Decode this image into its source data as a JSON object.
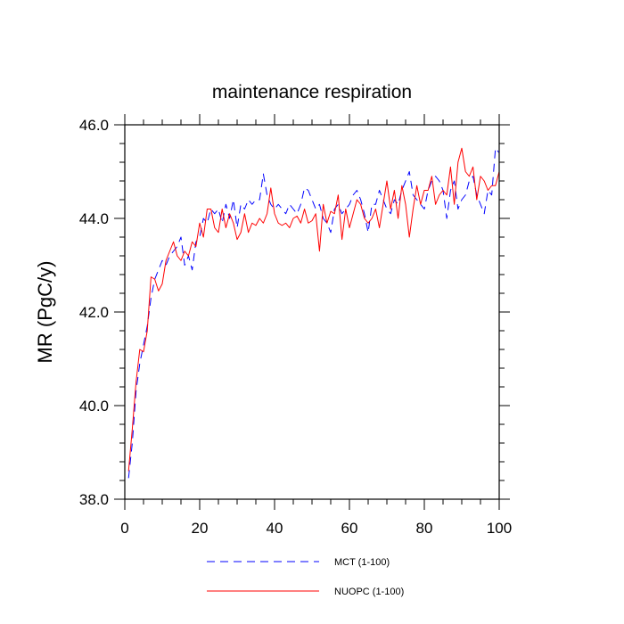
{
  "chart_data": {
    "type": "line",
    "title": "maintenance respiration",
    "xlabel": "",
    "ylabel": "MR  (PgC/y)",
    "xlim": [
      0,
      100
    ],
    "ylim": [
      38.0,
      46.0
    ],
    "x_ticks": [
      0,
      20,
      40,
      60,
      80,
      100
    ],
    "x_tick_labels": [
      "0",
      "20",
      "40",
      "60",
      "80",
      "100"
    ],
    "y_ticks": [
      38.0,
      40.0,
      42.0,
      44.0,
      46.0
    ],
    "y_tick_labels": [
      "38.0",
      "40.0",
      "42.0",
      "44.0",
      "46.0"
    ],
    "grid": false,
    "legend_position": "bottom",
    "series": [
      {
        "name": "MCT (1-100)",
        "color": "#0000ff",
        "style": "dashed",
        "x": [
          1,
          2,
          3,
          4,
          5,
          6,
          7,
          8,
          9,
          10,
          11,
          12,
          13,
          14,
          15,
          16,
          17,
          18,
          19,
          20,
          21,
          22,
          23,
          24,
          25,
          26,
          27,
          28,
          29,
          30,
          31,
          32,
          33,
          34,
          35,
          36,
          37,
          38,
          39,
          40,
          41,
          42,
          43,
          44,
          45,
          46,
          47,
          48,
          49,
          50,
          51,
          52,
          53,
          54,
          55,
          56,
          57,
          58,
          59,
          60,
          61,
          62,
          63,
          64,
          65,
          66,
          67,
          68,
          69,
          70,
          71,
          72,
          73,
          74,
          75,
          76,
          77,
          78,
          79,
          80,
          81,
          82,
          83,
          84,
          85,
          86,
          87,
          88,
          89,
          90,
          91,
          92,
          93,
          94,
          95,
          96,
          97,
          98,
          99,
          100
        ],
        "values": [
          38.45,
          39.2,
          40.3,
          40.9,
          41.3,
          41.7,
          42.3,
          42.7,
          42.9,
          43.1,
          43.0,
          43.2,
          43.3,
          43.4,
          43.6,
          43.0,
          43.2,
          42.9,
          43.5,
          43.6,
          44.0,
          43.9,
          44.2,
          44.1,
          44.2,
          43.9,
          44.3,
          44.0,
          44.4,
          43.8,
          44.3,
          44.2,
          44.4,
          44.3,
          44.4,
          44.4,
          44.95,
          44.5,
          44.3,
          44.2,
          44.3,
          44.2,
          44.1,
          44.3,
          44.2,
          44.1,
          44.3,
          44.65,
          44.6,
          44.4,
          44.2,
          44.3,
          44.0,
          43.9,
          43.7,
          44.2,
          44.3,
          44.1,
          44.2,
          44.3,
          44.5,
          44.6,
          44.4,
          44.1,
          43.7,
          44.3,
          44.3,
          44.6,
          44.4,
          44.2,
          44.1,
          44.4,
          44.3,
          44.6,
          44.8,
          45.0,
          44.5,
          44.4,
          44.3,
          44.2,
          44.6,
          44.8,
          44.9,
          44.8,
          44.6,
          44.0,
          44.6,
          44.8,
          44.2,
          44.4,
          44.5,
          44.8,
          44.9,
          44.5,
          44.3,
          44.1,
          44.6,
          44.5,
          45.5,
          45.4
        ]
      },
      {
        "name": "NUOPC (1-100)",
        "color": "#ff0000",
        "style": "solid",
        "x": [
          1,
          2,
          3,
          4,
          5,
          6,
          7,
          8,
          9,
          10,
          11,
          12,
          13,
          14,
          15,
          16,
          17,
          18,
          19,
          20,
          21,
          22,
          23,
          24,
          25,
          26,
          27,
          28,
          29,
          30,
          31,
          32,
          33,
          34,
          35,
          36,
          37,
          38,
          39,
          40,
          41,
          42,
          43,
          44,
          45,
          46,
          47,
          48,
          49,
          50,
          51,
          52,
          53,
          54,
          55,
          56,
          57,
          58,
          59,
          60,
          61,
          62,
          63,
          64,
          65,
          66,
          67,
          68,
          69,
          70,
          71,
          72,
          73,
          74,
          75,
          76,
          77,
          78,
          79,
          80,
          81,
          82,
          83,
          84,
          85,
          86,
          87,
          88,
          89,
          90,
          91,
          92,
          93,
          94,
          95,
          96,
          97,
          98,
          99,
          100
        ],
        "values": [
          38.6,
          39.5,
          40.5,
          41.2,
          41.15,
          41.6,
          42.75,
          42.7,
          42.45,
          42.6,
          43.1,
          43.3,
          43.5,
          43.2,
          43.1,
          43.3,
          43.2,
          43.5,
          43.4,
          43.9,
          43.6,
          44.2,
          44.2,
          43.8,
          43.7,
          44.2,
          43.8,
          44.1,
          43.9,
          43.55,
          43.7,
          44.1,
          43.7,
          43.9,
          43.85,
          44.0,
          43.9,
          44.1,
          44.65,
          44.1,
          43.9,
          43.85,
          43.9,
          43.8,
          44.0,
          44.05,
          43.9,
          44.2,
          43.9,
          43.95,
          44.1,
          43.3,
          44.3,
          43.9,
          44.15,
          44.1,
          44.5,
          43.55,
          44.2,
          43.8,
          44.1,
          44.4,
          44.3,
          44.0,
          43.9,
          44.0,
          44.2,
          43.8,
          44.3,
          44.8,
          44.2,
          44.6,
          44.0,
          44.7,
          44.3,
          43.6,
          44.2,
          44.7,
          44.3,
          44.6,
          44.6,
          44.9,
          44.3,
          44.5,
          44.6,
          44.5,
          45.1,
          44.3,
          45.2,
          45.5,
          45.0,
          44.9,
          45.1,
          44.4,
          44.9,
          44.8,
          44.6,
          44.7,
          44.7,
          45.0
        ]
      }
    ]
  }
}
